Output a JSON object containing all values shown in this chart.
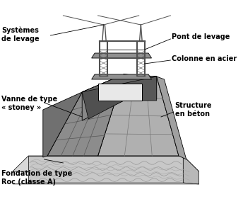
{
  "background_color": "#ffffff",
  "figure_size": [
    3.44,
    2.88
  ],
  "dpi": 100,
  "labels": {
    "systemes_de_levage": "Systèmes\nde levage",
    "pont_de_levage": "Pont de levage",
    "colonne_en_acier": "Colonne en acier",
    "vanne_de_type": "Vanne de type",
    "stoney": "« stoney »",
    "structure_en_beton": "Structure\nen béton",
    "fondation_de_type": "Fondation de type",
    "roc": "Roc (classe A)"
  },
  "colors": {
    "left_face": "#8c8c8c",
    "right_face": "#b0b0b0",
    "top_face": "#787878",
    "inner_dark": "#606060",
    "inner_channel": "#484848",
    "left_wall_top": "#909090",
    "right_wall_face": "#c0c0c0",
    "right_wall_side": "#a8a8a8",
    "found_top_light": "#d8d8d8",
    "found_front": "#c8c8c8",
    "found_right": "#b8b8b8",
    "found_top_dark": "#c0c0c0",
    "bridge_frame": "#888888",
    "crane_color": "#505050",
    "outline": "#000000",
    "white_gate": "#e8e8e8"
  }
}
